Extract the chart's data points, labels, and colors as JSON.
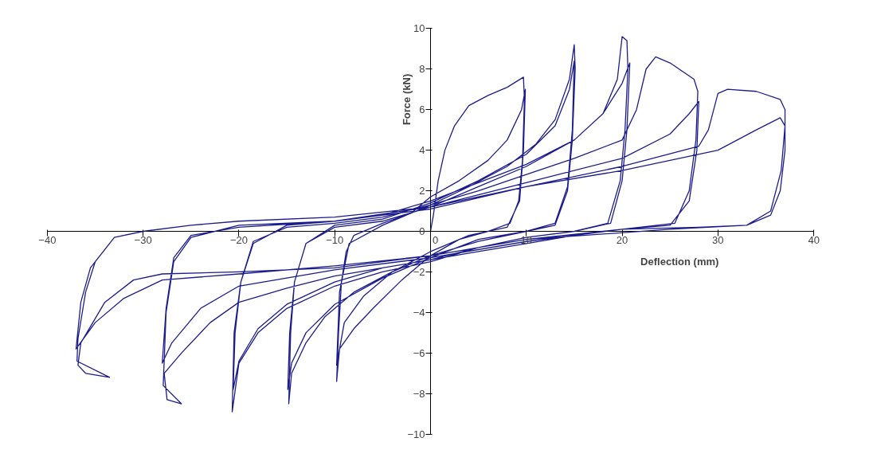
{
  "chart_data": {
    "type": "line",
    "xlabel": "Deflection (mm)",
    "ylabel": "Force (kN)",
    "xlim": [
      -40,
      40
    ],
    "ylim": [
      -10,
      10
    ],
    "xticks": [
      -40,
      -30,
      -20,
      -10,
      0,
      10,
      20,
      30,
      40
    ],
    "yticks": [
      -10,
      -8,
      -6,
      -4,
      -2,
      0,
      2,
      4,
      6,
      8,
      10
    ],
    "grid": false,
    "series": [
      {
        "color": "#1c1c8c",
        "x": [
          0,
          0.3,
          0.8,
          1.5,
          2.5,
          4,
          6,
          8,
          9.7,
          9.8,
          9.6,
          9.2,
          8.3,
          6,
          3,
          0,
          -3,
          -6,
          -8,
          -9.5,
          -9.8,
          -9.6,
          -9.3,
          -8.8,
          -8,
          -5,
          -2,
          0,
          3,
          6,
          8,
          9.5,
          9.9,
          9.7,
          9.3,
          8,
          4,
          0,
          -4,
          -7,
          -9,
          -9.8,
          -9.5,
          -8.5,
          -5,
          0,
          4,
          8,
          11,
          13,
          14.5,
          15,
          15.1,
          14.8,
          14.3,
          13,
          10,
          5,
          0,
          -4,
          -8,
          -11,
          -13,
          -14.5,
          -14.8,
          -14.6,
          -14.2,
          -13,
          -10,
          -5,
          0,
          5,
          10,
          13,
          14.5,
          15,
          14.8,
          14.3,
          13,
          10,
          5,
          0,
          -5,
          -10,
          -13,
          -14.5,
          -14.9,
          -14.7,
          -14.2,
          -13,
          -10,
          -5,
          0,
          5,
          10,
          15,
          18,
          19.5,
          20,
          20.5,
          20.6,
          20.3,
          19.8,
          18.5,
          15,
          10,
          5,
          0,
          -5,
          -10,
          -15,
          -18,
          -20,
          -20.7,
          -20.5,
          -19.8,
          -18.5,
          -15,
          -10,
          -5,
          0,
          5,
          10,
          15,
          18,
          20,
          20.8,
          20.5,
          20,
          18.8,
          15,
          10,
          5,
          0,
          -5,
          -10,
          -15,
          -18,
          -20,
          -20.6,
          -20.4,
          -19.8,
          -18.5,
          -15,
          -10,
          -5,
          0,
          5,
          10,
          15,
          20,
          21.5,
          22.5,
          23.5,
          25,
          27.5,
          27.9,
          27.7,
          27,
          25.5,
          20,
          15,
          10,
          5,
          0,
          -5,
          -10,
          -15,
          -20,
          -23,
          -26,
          -27.8,
          -27.5,
          -26,
          -27.9,
          -27.6,
          -26.8,
          -25,
          -20,
          -10,
          0,
          10,
          20,
          25,
          27,
          28,
          27.8,
          27,
          25,
          20,
          10,
          0,
          -10,
          -20,
          -24,
          -27,
          -28,
          -27.6,
          -26.8,
          -25,
          -20,
          -10,
          0,
          10,
          20,
          28,
          29,
          30,
          31,
          34,
          36.5,
          37,
          37,
          36.5,
          35.5,
          33,
          28,
          20,
          10,
          0,
          -10,
          -20,
          -28,
          -31,
          -34,
          -36.5,
          -36.8,
          -36,
          -33.5,
          -36.9,
          -36.8,
          -36,
          -35,
          -33,
          -30,
          -25,
          -20,
          -10,
          0,
          10,
          20,
          30,
          34,
          36.5,
          37,
          36.6,
          35.5,
          33,
          25,
          10,
          0,
          -10,
          -20,
          -28,
          -32,
          -35,
          -37,
          -36.5,
          -35.5,
          -33,
          -30
        ],
        "values": [
          0,
          0.8,
          2.5,
          4,
          5.2,
          6.2,
          6.7,
          7.1,
          7.6,
          6.5,
          3.5,
          1.5,
          0.4,
          0,
          -0.4,
          -1.2,
          -2.4,
          -3.8,
          -4.8,
          -5.8,
          -7.4,
          -5,
          -2.5,
          -1,
          -0.2,
          0.4,
          0.9,
          1.7,
          2.5,
          3.5,
          4.5,
          6,
          7,
          4,
          1.5,
          0.2,
          -0.2,
          -1,
          -2,
          -3.2,
          -4.5,
          -6.6,
          -3,
          -0.6,
          0.3,
          1.3,
          2.2,
          3.2,
          4.3,
          5.5,
          7.5,
          9.2,
          8,
          4.5,
          2,
          0.3,
          0,
          -0.5,
          -1.2,
          -2,
          -3,
          -4.2,
          -5.5,
          -7,
          -8.5,
          -5,
          -2.5,
          -0.6,
          0.3,
          0.6,
          1.4,
          2.5,
          3.8,
          5.2,
          7,
          8.4,
          5,
          2.2,
          0.4,
          0,
          -0.4,
          -1.3,
          -2.3,
          -3.6,
          -5,
          -6.5,
          -7.8,
          -5,
          -2.5,
          -0.6,
          0.2,
          0.5,
          1.2,
          2.2,
          3.2,
          4.5,
          5.8,
          7.5,
          9.6,
          9.4,
          8,
          5,
          2.5,
          0.4,
          0,
          -0.3,
          -0.8,
          -1.5,
          -2,
          -2.7,
          -3.8,
          -5,
          -6.5,
          -8.9,
          -5,
          -2.5,
          -0.6,
          0.3,
          0.5,
          0.8,
          1.5,
          2.4,
          3.3,
          4.5,
          5.8,
          7.3,
          8.3,
          5,
          2.5,
          0.4,
          0,
          -0.3,
          -0.8,
          -1.4,
          -1.8,
          -2.5,
          -3.6,
          -4.8,
          -6.4,
          -7.8,
          -5,
          -2.5,
          -0.5,
          0.2,
          0.4,
          0.7,
          1.3,
          2,
          2.8,
          3.6,
          4.5,
          6,
          8,
          8.6,
          8.3,
          7.5,
          6.9,
          4.5,
          2,
          0.4,
          0.1,
          -0.2,
          -0.6,
          -1,
          -1.4,
          -1.8,
          -2.2,
          -2.8,
          -3.5,
          -4.5,
          -6,
          -7,
          -8.3,
          -8.5,
          -7.6,
          -4,
          -1.5,
          -0.3,
          0.3,
          0.5,
          1.2,
          2.4,
          3.6,
          4.8,
          5.8,
          6.4,
          4,
          1.5,
          0.3,
          0.1,
          -0.5,
          -1.3,
          -1.9,
          -2.7,
          -3.8,
          -5.5,
          -6.5,
          -3.8,
          -1.3,
          -0.2,
          0.2,
          0.5,
          1.1,
          2.2,
          3.2,
          4.2,
          5,
          6.8,
          7,
          6.9,
          6.5,
          6,
          4,
          2,
          0.8,
          0.3,
          0.2,
          0.1,
          -0.4,
          -1.2,
          -1.8,
          -2,
          -2.1,
          -2.4,
          -3.5,
          -5.5,
          -6.6,
          -7,
          -7.2,
          -6.4,
          -5.3,
          -3,
          -1.5,
          -0.3,
          0,
          0.3,
          0.5,
          0.7,
          1.2,
          2.2,
          3,
          4,
          5,
          5.6,
          5.2,
          3,
          1,
          0.3,
          0.1,
          -0.4,
          -1.2,
          -1.7,
          -2.1,
          -2.4,
          -3.3,
          -4.5,
          -5.8,
          -3.5,
          -1.8,
          -0.3,
          0
        ]
      }
    ]
  }
}
